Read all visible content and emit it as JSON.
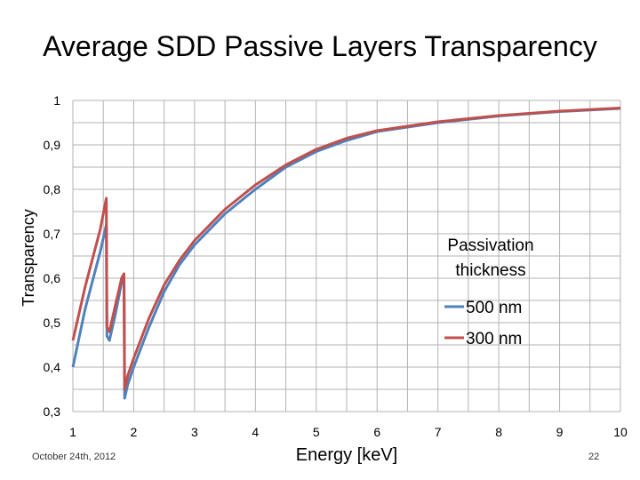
{
  "slide": {
    "footer_date": "October 24th, 2012",
    "page_number": "22"
  },
  "colors": {
    "series_500": "#4f81bd",
    "series_300": "#c0504d",
    "grid": "#b3b3b3"
  },
  "chart_data": {
    "type": "line",
    "title": "Average SDD Passive Layers Transparency",
    "xlabel": "Energy [keV]",
    "ylabel": "Transparency",
    "xlim": [
      1,
      10
    ],
    "ylim": [
      0.3,
      1
    ],
    "x_ticks": [
      "1",
      "2",
      "3",
      "4",
      "5",
      "6",
      "7",
      "8",
      "9",
      "10"
    ],
    "y_ticks": [
      "0,3",
      "0,4",
      "0,5",
      "0,6",
      "0,7",
      "0,8",
      "0,9",
      "1"
    ],
    "grid": true,
    "legend": {
      "title_line1": "Passivation",
      "title_line2": "thickness",
      "placement": "center-right"
    },
    "series": [
      {
        "name": "500 nm",
        "color": "#4f81bd",
        "points": [
          [
            1.0,
            0.4
          ],
          [
            1.2,
            0.53
          ],
          [
            1.45,
            0.66
          ],
          [
            1.55,
            0.72
          ],
          [
            1.56,
            0.47
          ],
          [
            1.6,
            0.46
          ],
          [
            1.7,
            0.52
          ],
          [
            1.8,
            0.59
          ],
          [
            1.84,
            0.6
          ],
          [
            1.85,
            0.33
          ],
          [
            1.9,
            0.36
          ],
          [
            2.0,
            0.4
          ],
          [
            2.25,
            0.49
          ],
          [
            2.5,
            0.57
          ],
          [
            2.75,
            0.63
          ],
          [
            3.0,
            0.675
          ],
          [
            3.5,
            0.745
          ],
          [
            4.0,
            0.8
          ],
          [
            4.5,
            0.85
          ],
          [
            5.0,
            0.885
          ],
          [
            5.5,
            0.91
          ],
          [
            6.0,
            0.93
          ],
          [
            7.0,
            0.95
          ],
          [
            8.0,
            0.965
          ],
          [
            9.0,
            0.975
          ],
          [
            10.0,
            0.982
          ]
        ]
      },
      {
        "name": "300 nm",
        "color": "#c0504d",
        "points": [
          [
            1.0,
            0.46
          ],
          [
            1.2,
            0.58
          ],
          [
            1.45,
            0.71
          ],
          [
            1.55,
            0.78
          ],
          [
            1.56,
            0.49
          ],
          [
            1.6,
            0.48
          ],
          [
            1.7,
            0.54
          ],
          [
            1.8,
            0.6
          ],
          [
            1.84,
            0.61
          ],
          [
            1.85,
            0.35
          ],
          [
            1.9,
            0.38
          ],
          [
            2.0,
            0.42
          ],
          [
            2.25,
            0.51
          ],
          [
            2.5,
            0.585
          ],
          [
            2.75,
            0.64
          ],
          [
            3.0,
            0.685
          ],
          [
            3.5,
            0.755
          ],
          [
            4.0,
            0.81
          ],
          [
            4.5,
            0.855
          ],
          [
            5.0,
            0.89
          ],
          [
            5.5,
            0.915
          ],
          [
            6.0,
            0.932
          ],
          [
            7.0,
            0.952
          ],
          [
            8.0,
            0.966
          ],
          [
            9.0,
            0.976
          ],
          [
            10.0,
            0.983
          ]
        ]
      }
    ]
  }
}
